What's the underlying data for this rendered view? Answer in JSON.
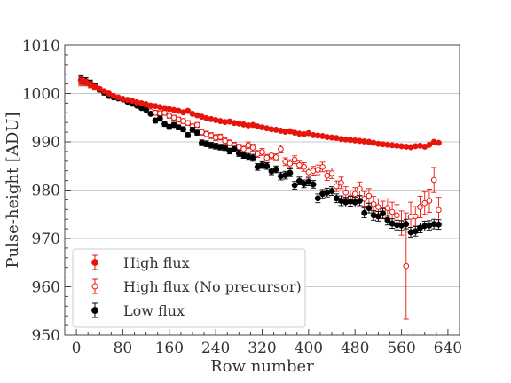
{
  "chart_data": {
    "type": "scatter",
    "xlabel": "Row number",
    "ylabel": "Pulse-height [ADU]",
    "xlim": [
      -20,
      660
    ],
    "ylim": [
      950,
      1010
    ],
    "xticks": [
      0,
      80,
      160,
      240,
      320,
      400,
      480,
      560,
      640
    ],
    "yticks": [
      950,
      960,
      970,
      980,
      990,
      1000,
      1010
    ],
    "grid": "horizontal",
    "legend_position": "lower-left",
    "colors": {
      "red": "#e8140c",
      "black": "#000000",
      "grid": "#c8c8c8",
      "axis": "#444444"
    },
    "series": [
      {
        "name": "High flux",
        "marker": "filled-circle",
        "color": "#e8140c",
        "x": [
          8,
          16,
          24,
          32,
          40,
          48,
          56,
          64,
          72,
          80,
          88,
          96,
          104,
          112,
          120,
          128,
          136,
          144,
          152,
          160,
          168,
          176,
          184,
          192,
          200,
          208,
          216,
          224,
          232,
          240,
          248,
          256,
          264,
          272,
          280,
          288,
          296,
          304,
          312,
          320,
          328,
          336,
          344,
          352,
          360,
          368,
          376,
          384,
          392,
          400,
          408,
          416,
          424,
          432,
          440,
          448,
          456,
          464,
          472,
          480,
          488,
          496,
          504,
          512,
          520,
          528,
          536,
          544,
          552,
          560,
          568,
          576,
          584,
          592,
          600,
          608,
          616,
          624
        ],
        "y": [
          1002.7,
          1002.4,
          1002.0,
          1001.4,
          1001.0,
          1000.5,
          1000.0,
          999.5,
          999.2,
          998.9,
          998.7,
          998.5,
          998.2,
          998.0,
          997.8,
          997.5,
          997.4,
          997.2,
          997.0,
          996.8,
          996.6,
          996.4,
          996.1,
          996.4,
          995.8,
          995.5,
          995.2,
          994.9,
          994.7,
          994.5,
          994.3,
          994.1,
          994.2,
          993.9,
          993.8,
          993.6,
          993.4,
          993.5,
          993.2,
          993.0,
          992.8,
          992.6,
          992.5,
          992.3,
          992.1,
          992.2,
          991.9,
          991.7,
          991.6,
          991.8,
          991.4,
          991.3,
          991.2,
          991.0,
          990.9,
          990.8,
          990.6,
          990.5,
          990.4,
          990.3,
          990.2,
          990.1,
          990.0,
          989.8,
          989.6,
          989.5,
          989.4,
          989.3,
          989.2,
          989.1,
          989.0,
          988.9,
          989.1,
          989.2,
          989.0,
          989.4,
          990.0,
          989.8
        ],
        "yerr": [
          0.8,
          0.6,
          0.5,
          0.4,
          0.4,
          0.3,
          0.3,
          0.3,
          0.3,
          0.3,
          0.3,
          0.3,
          0.3,
          0.3,
          0.3,
          0.3,
          0.3,
          0.3,
          0.3,
          0.3,
          0.3,
          0.3,
          0.3,
          0.3,
          0.3,
          0.3,
          0.3,
          0.3,
          0.3,
          0.3,
          0.3,
          0.3,
          0.3,
          0.3,
          0.3,
          0.3,
          0.3,
          0.3,
          0.3,
          0.3,
          0.3,
          0.3,
          0.3,
          0.3,
          0.3,
          0.3,
          0.3,
          0.3,
          0.3,
          0.3,
          0.3,
          0.3,
          0.3,
          0.3,
          0.3,
          0.3,
          0.3,
          0.3,
          0.3,
          0.3,
          0.3,
          0.3,
          0.3,
          0.3,
          0.3,
          0.3,
          0.3,
          0.3,
          0.3,
          0.3,
          0.3,
          0.3,
          0.3,
          0.3,
          0.3,
          0.3,
          0.3,
          0.3
        ]
      },
      {
        "name": "High flux (No precursor)",
        "marker": "open-circle",
        "color": "#e8140c",
        "x": [
          8,
          16,
          24,
          32,
          40,
          48,
          56,
          64,
          72,
          80,
          88,
          96,
          104,
          112,
          120,
          128,
          136,
          144,
          152,
          160,
          168,
          176,
          184,
          192,
          200,
          208,
          216,
          224,
          232,
          240,
          248,
          256,
          264,
          272,
          280,
          288,
          296,
          304,
          312,
          320,
          328,
          336,
          344,
          352,
          360,
          368,
          376,
          384,
          392,
          400,
          408,
          416,
          424,
          432,
          440,
          448,
          456,
          464,
          472,
          480,
          488,
          496,
          504,
          512,
          520,
          528,
          536,
          544,
          552,
          560,
          568,
          576,
          584,
          592,
          600,
          608,
          616,
          624
        ],
        "y": [
          1002.5,
          1002.3,
          1001.8,
          1001.2,
          1000.8,
          1000.2,
          999.8,
          999.5,
          999.0,
          998.8,
          998.5,
          998.1,
          997.7,
          997.2,
          996.8,
          996.3,
          996.0,
          995.9,
          996.0,
          995.4,
          995.0,
          994.6,
          994.3,
          993.9,
          993.2,
          993.5,
          992.0,
          991.6,
          991.3,
          990.9,
          991.0,
          990.2,
          989.8,
          989.3,
          988.9,
          988.5,
          989.3,
          988.8,
          987.5,
          987.9,
          986.7,
          987.2,
          986.8,
          988.5,
          985.9,
          985.5,
          986.3,
          985.2,
          984.8,
          983.7,
          984.0,
          984.2,
          984.8,
          983.0,
          983.5,
          980.8,
          981.5,
          979.5,
          978.5,
          979.2,
          980.3,
          978.2,
          978.8,
          977.1,
          976.5,
          975.9,
          976.3,
          975.5,
          974.8,
          973.2,
          964.3,
          974.5,
          974.6,
          976.5,
          977.3,
          977.8,
          982.1,
          975.9
        ],
        "yerr": [
          0.9,
          0.7,
          0.6,
          0.5,
          0.5,
          0.5,
          0.4,
          0.4,
          0.4,
          0.4,
          0.4,
          0.4,
          0.4,
          0.4,
          0.4,
          0.4,
          0.5,
          0.5,
          0.5,
          0.5,
          0.5,
          0.5,
          0.5,
          0.5,
          0.5,
          0.5,
          0.6,
          0.6,
          0.6,
          0.6,
          0.6,
          0.6,
          0.6,
          0.6,
          0.6,
          0.6,
          0.7,
          0.7,
          0.7,
          0.7,
          0.7,
          0.7,
          0.7,
          0.8,
          0.8,
          0.8,
          0.8,
          0.8,
          0.9,
          0.9,
          0.9,
          1.0,
          1.0,
          1.0,
          1.1,
          1.1,
          1.2,
          1.2,
          1.3,
          1.3,
          1.4,
          1.5,
          1.5,
          1.6,
          1.7,
          1.8,
          1.9,
          2.0,
          2.2,
          2.5,
          11.0,
          3.0,
          2.0,
          2.2,
          2.3,
          2.4,
          2.6,
          2.6
        ]
      },
      {
        "name": "Low flux",
        "marker": "filled-circle",
        "color": "#000000",
        "x": [
          8,
          16,
          24,
          32,
          40,
          48,
          56,
          64,
          72,
          80,
          88,
          96,
          104,
          112,
          120,
          128,
          136,
          144,
          152,
          160,
          168,
          176,
          184,
          192,
          200,
          208,
          216,
          224,
          232,
          240,
          248,
          256,
          264,
          272,
          280,
          288,
          296,
          304,
          312,
          320,
          328,
          336,
          344,
          352,
          360,
          368,
          376,
          384,
          392,
          400,
          408,
          416,
          424,
          432,
          440,
          448,
          456,
          464,
          472,
          480,
          488,
          496,
          504,
          512,
          520,
          528,
          536,
          544,
          552,
          560,
          568,
          576,
          584,
          592,
          600,
          608,
          616,
          624
        ],
        "y": [
          1002.8,
          1002.6,
          1002.2,
          1001.5,
          1000.8,
          1000.2,
          999.5,
          999.2,
          999.0,
          998.8,
          998.3,
          997.9,
          997.5,
          997.0,
          996.6,
          995.8,
          994.4,
          994.8,
          993.7,
          993.1,
          993.5,
          993.0,
          992.6,
          991.4,
          992.5,
          991.9,
          989.8,
          989.6,
          989.3,
          989.1,
          988.9,
          988.8,
          988.1,
          988.5,
          987.6,
          987.2,
          986.9,
          986.7,
          984.8,
          985.2,
          985.0,
          983.9,
          984.3,
          982.9,
          983.1,
          983.6,
          981.0,
          981.9,
          981.3,
          981.7,
          981.2,
          978.3,
          979.2,
          979.5,
          979.8,
          978.3,
          977.8,
          977.5,
          977.7,
          977.5,
          977.8,
          975.3,
          976.3,
          974.8,
          974.6,
          975.2,
          973.8,
          973.1,
          972.8,
          972.7,
          973.0,
          971.3,
          971.5,
          972.2,
          972.6,
          972.7,
          973.0,
          972.9
        ],
        "yerr": [
          0.9,
          0.7,
          0.6,
          0.5,
          0.5,
          0.5,
          0.4,
          0.4,
          0.4,
          0.4,
          0.4,
          0.4,
          0.4,
          0.4,
          0.4,
          0.4,
          0.5,
          0.5,
          0.5,
          0.5,
          0.5,
          0.5,
          0.5,
          0.5,
          0.5,
          0.5,
          0.6,
          0.6,
          0.6,
          0.6,
          0.6,
          0.6,
          0.6,
          0.6,
          0.6,
          0.6,
          0.7,
          0.7,
          0.7,
          0.7,
          0.7,
          0.7,
          0.7,
          0.8,
          0.8,
          0.8,
          0.8,
          0.8,
          0.8,
          0.8,
          0.8,
          0.9,
          0.9,
          0.9,
          0.9,
          0.9,
          1.0,
          1.0,
          1.0,
          1.0,
          1.0,
          1.0,
          1.0,
          1.0,
          1.0,
          1.0,
          1.0,
          1.0,
          1.0,
          1.0,
          1.0,
          1.0,
          1.0,
          1.0,
          1.0,
          1.0,
          1.0,
          1.0
        ]
      }
    ]
  }
}
